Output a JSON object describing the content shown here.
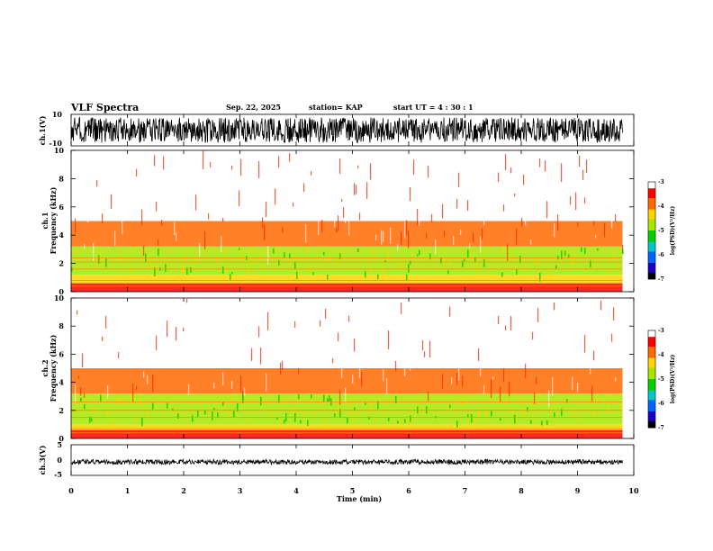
{
  "header": {
    "title": "VLF Spectra",
    "date": "Sep. 22, 2025",
    "station": "station= KAP",
    "start_ut": "start  UT =   4 : 30 : 1"
  },
  "colors": {
    "spectrogram_base": "#ffffff",
    "waveform": "#000000",
    "colormap": [
      "#000000",
      "#1a00c8",
      "#0064ff",
      "#00c8c8",
      "#00d000",
      "#a8e600",
      "#ffd400",
      "#ff6a00",
      "#ff0000",
      "#ffffff"
    ]
  },
  "chart_data": [
    {
      "type": "line",
      "name": "ch1-waveform",
      "ylabel": "ch.1(V)",
      "ylim": [
        -10,
        10
      ],
      "yticks": [
        "10",
        "-10"
      ],
      "xlim": [
        0,
        10
      ],
      "data_end_min": 9.8,
      "amplitude_range_V": [
        -8,
        8
      ]
    },
    {
      "type": "heatmap",
      "name": "ch1-spectrogram",
      "ylabel": "ch.1\nFrequency (kHz)",
      "ylim": [
        0,
        10
      ],
      "yticks": [
        "0",
        "2",
        "4",
        "6",
        "8",
        "10"
      ],
      "xlim": [
        0,
        10
      ],
      "data_end_min": 9.8,
      "colorbar": {
        "label": "log(PSD)(V²/Hz)",
        "range": [
          -7,
          -3
        ],
        "ticks": [
          "-3",
          "-4",
          "-5",
          "-6",
          "-7"
        ]
      },
      "bands_kHz": [
        {
          "from": 0,
          "to": 0.6,
          "level": -3.5
        },
        {
          "from": 0.6,
          "to": 1.2,
          "level": -4.2
        },
        {
          "from": 1.2,
          "to": 3.2,
          "level": -4.9
        },
        {
          "from": 3.2,
          "to": 5,
          "level": -3.9
        },
        {
          "from": 5,
          "to": 10,
          "level": -3.2
        }
      ],
      "tone_lines_kHz": [
        0.4,
        0.8,
        1.6,
        2.1,
        2.4
      ]
    },
    {
      "type": "heatmap",
      "name": "ch2-spectrogram",
      "ylabel": "ch.2\nFrequency (kHz)",
      "ylim": [
        0,
        10
      ],
      "yticks": [
        "0",
        "2",
        "4",
        "6",
        "8",
        "10"
      ],
      "xlim": [
        0,
        10
      ],
      "data_end_min": 9.8,
      "colorbar": {
        "label": "log(PSD)(V²/Hz)",
        "range": [
          -7,
          -3
        ],
        "ticks": [
          "-3",
          "-4",
          "-5",
          "-6",
          "-7"
        ]
      },
      "bands_kHz": [
        {
          "from": 0,
          "to": 0.6,
          "level": -3.5
        },
        {
          "from": 0.6,
          "to": 1.0,
          "level": -4.3
        },
        {
          "from": 1.0,
          "to": 3.2,
          "level": -5.0
        },
        {
          "from": 3.2,
          "to": 5,
          "level": -3.9
        },
        {
          "from": 5,
          "to": 10,
          "level": -3.2
        }
      ],
      "tone_lines_kHz": [
        0.4,
        0.7,
        1.5,
        2.0,
        2.6
      ]
    },
    {
      "type": "line",
      "name": "ch3-waveform",
      "ylabel": "ch.3(V)",
      "ylim": [
        -5,
        5
      ],
      "yticks": [
        "5",
        "0",
        "-5"
      ],
      "xlim": [
        0,
        10
      ],
      "data_end_min": 9.8,
      "amplitude_range_V": [
        -1.4,
        0.2
      ]
    }
  ],
  "xaxis": {
    "label": "Time (min)",
    "ticks": [
      "0",
      "1",
      "2",
      "3",
      "4",
      "5",
      "6",
      "7",
      "8",
      "9",
      "10"
    ]
  }
}
